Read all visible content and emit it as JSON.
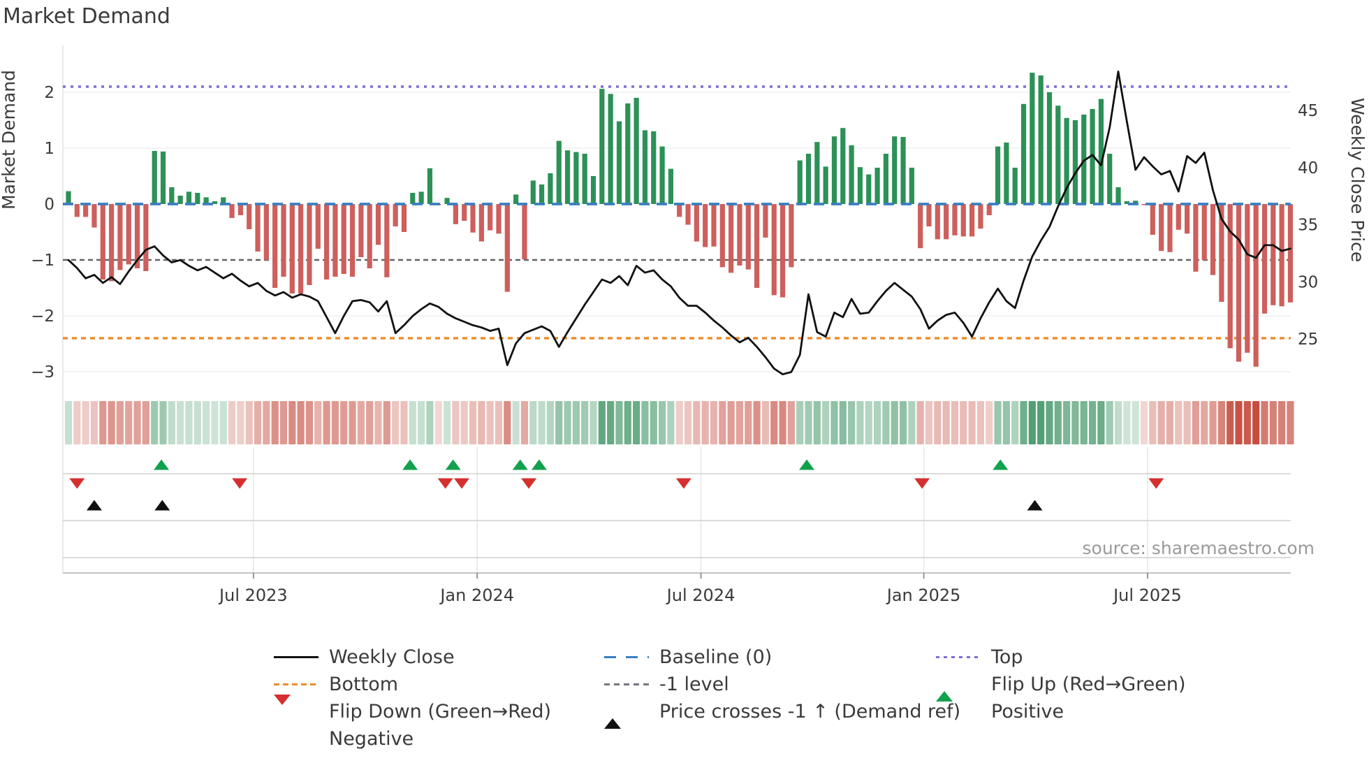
{
  "title": "Market Demand",
  "source_text": "source: sharemaestro.com",
  "axes": {
    "left_title": "Market Demand",
    "right_title": "Weekly Close Price",
    "demand_tick_labels": [
      "2",
      "1",
      "0",
      "−1",
      "−2",
      "−3"
    ],
    "demand_tick_values": [
      2,
      1,
      0,
      -1,
      -2,
      -3
    ],
    "price_tick_labels": [
      "45",
      "40",
      "35",
      "30",
      "25"
    ],
    "price_tick_values": [
      45,
      40,
      35,
      30,
      25
    ]
  },
  "chart_data": {
    "type": "bar",
    "subtype": "combo-bar-line-heatmap",
    "title": "Market Demand",
    "xlabel": "",
    "ylabel": "Market Demand",
    "y2label": "Weekly Close Price",
    "demand_ylim": [
      -3.35,
      2.85
    ],
    "price_ylim": [
      20.4,
      50.7
    ],
    "grid": "horizontal-light",
    "x_ticks": [
      {
        "label": "Jul 2023",
        "week": 21.5
      },
      {
        "label": "Jan 2024",
        "week": 47.5
      },
      {
        "label": "Jul 2024",
        "week": 73.5
      },
      {
        "label": "Jan 2025",
        "week": 99.4
      },
      {
        "label": "Jul 2025",
        "week": 125.4
      }
    ],
    "ref_lines": [
      {
        "name": "Top",
        "value": 2.1,
        "color": "#7b6fd4",
        "style": "dotted"
      },
      {
        "name": "Baseline (0)",
        "value": 0,
        "color": "#3a7ebf",
        "style": "dashed"
      },
      {
        "name": "-1 level",
        "value": -1,
        "color": "#5f6368",
        "style": "dashed"
      },
      {
        "name": "Bottom",
        "value": -2.4,
        "color": "#ee8d2a",
        "style": "dashed"
      }
    ],
    "series": [
      {
        "name": "Market Demand (weekly bars)",
        "type": "bar",
        "axis": "left",
        "color_positive": "#2c9156",
        "color_negative": "#cd5f5c",
        "values": [
          0.23,
          -0.23,
          -0.23,
          -0.42,
          -1.35,
          -1.38,
          -1.18,
          -1.08,
          -1.15,
          -1.2,
          0.95,
          0.94,
          0.3,
          0.15,
          0.22,
          0.2,
          0.12,
          0.05,
          0.12,
          -0.25,
          -0.2,
          -0.45,
          -0.85,
          -1.0,
          -1.5,
          -1.3,
          -1.6,
          -1.6,
          -1.45,
          -0.8,
          -1.35,
          -1.3,
          -1.25,
          -1.3,
          -0.95,
          -1.15,
          -0.73,
          -1.31,
          -0.4,
          -0.5,
          0.2,
          0.22,
          0.64,
          -0.02,
          0.11,
          -0.36,
          -0.3,
          -0.51,
          -0.67,
          -0.47,
          -0.53,
          -1.57,
          0.17,
          -0.99,
          0.42,
          0.35,
          0.55,
          1.13,
          0.96,
          0.93,
          0.9,
          0.5,
          2.06,
          1.97,
          1.48,
          1.8,
          1.9,
          1.32,
          1.3,
          1.03,
          0.63,
          -0.23,
          -0.37,
          -0.67,
          -0.77,
          -0.76,
          -1.13,
          -1.23,
          -1.1,
          -1.17,
          -1.5,
          -0.6,
          -1.63,
          -1.67,
          -1.13,
          0.78,
          0.9,
          1.11,
          0.67,
          1.21,
          1.36,
          1.05,
          0.66,
          0.53,
          0.65,
          0.9,
          1.21,
          1.2,
          0.65,
          -0.79,
          -0.4,
          -0.63,
          -0.63,
          -0.56,
          -0.58,
          -0.58,
          -0.44,
          -0.2,
          1.03,
          1.1,
          0.65,
          1.79,
          2.35,
          2.3,
          2.0,
          1.76,
          1.54,
          1.5,
          1.6,
          1.7,
          1.88,
          0.9,
          0.3,
          0.05,
          0.06,
          -0.02,
          -0.55,
          -0.84,
          -0.86,
          -0.46,
          -0.53,
          -1.21,
          -1.0,
          -1.27,
          -1.75,
          -2.58,
          -2.82,
          -2.66,
          -2.91,
          -1.96,
          -1.81,
          -1.83,
          -1.76
        ]
      },
      {
        "name": "Weekly Close",
        "type": "line",
        "axis": "right",
        "color": "#111111",
        "values": [
          31.9,
          31.2,
          30.3,
          30.6,
          29.9,
          30.4,
          29.8,
          30.9,
          31.9,
          32.8,
          33.1,
          32.3,
          31.7,
          31.9,
          31.4,
          31.0,
          31.3,
          30.8,
          30.3,
          30.7,
          30.1,
          29.6,
          29.9,
          29.2,
          28.8,
          29.1,
          28.6,
          28.9,
          28.7,
          28.3,
          26.9,
          25.5,
          27.0,
          28.3,
          28.4,
          28.2,
          27.4,
          28.3,
          25.5,
          26.2,
          27.0,
          27.6,
          28.1,
          27.8,
          27.2,
          26.8,
          26.5,
          26.2,
          26.0,
          25.7,
          25.9,
          22.7,
          24.6,
          25.5,
          25.8,
          26.1,
          25.7,
          24.3,
          25.6,
          26.8,
          28.0,
          29.1,
          30.2,
          29.9,
          30.5,
          29.7,
          31.4,
          30.8,
          31.0,
          30.2,
          29.6,
          28.6,
          27.9,
          27.9,
          27.3,
          26.6,
          26.0,
          25.3,
          24.7,
          25.1,
          24.3,
          23.4,
          22.4,
          21.9,
          22.1,
          23.6,
          28.9,
          25.6,
          25.2,
          27.3,
          26.9,
          28.5,
          27.2,
          27.3,
          28.3,
          29.2,
          29.9,
          29.3,
          28.7,
          27.6,
          25.9,
          26.6,
          27.1,
          27.3,
          26.4,
          25.2,
          26.8,
          28.2,
          29.4,
          28.3,
          27.7,
          30.1,
          32.2,
          33.6,
          34.8,
          36.6,
          38.2,
          39.5,
          40.6,
          41.1,
          40.2,
          43.5,
          48.4,
          44.0,
          39.8,
          40.9,
          40.1,
          39.4,
          39.7,
          37.9,
          41.0,
          40.4,
          41.3,
          38.0,
          35.5,
          34.4,
          33.7,
          32.4,
          32.1,
          33.2,
          33.2,
          32.7,
          32.9
        ]
      }
    ],
    "heatmap": {
      "description": "weekly color strip below chart; cell color intensity proportional to demand bar value (green positive, red negative)",
      "derived_from": "series[0].values",
      "positive_color": "#2e8b57",
      "negative_color": "#c04a3c"
    },
    "markers": {
      "flip_up": {
        "label": "Flip Up (Red→Green)",
        "color": "#12a14e",
        "shape": "triangle-up",
        "weeks": [
          10.8,
          39.7,
          44.7,
          52.5,
          54.7,
          85.8,
          108.3
        ]
      },
      "flip_down": {
        "label": "Flip Down (Green→Red)",
        "color": "#d62f2f",
        "shape": "triangle-down",
        "weeks": [
          1.0,
          19.9,
          43.8,
          45.7,
          53.5,
          71.5,
          99.2,
          126.4
        ]
      },
      "price_cross": {
        "label": "Price crosses -1 ↑ (Demand ref)",
        "color": "#111111",
        "shape": "triangle-up",
        "weeks": [
          3.0,
          10.9,
          112.3
        ]
      }
    }
  },
  "legend": {
    "columns": [
      [
        {
          "swatch": "line-black",
          "label": "Weekly Close"
        },
        {
          "swatch": "dash-orange",
          "label": "Bottom"
        },
        {
          "swatch": "tri-down-red",
          "label": "Flip Down (Green→Red)"
        },
        {
          "swatch": "circle-darkred",
          "label": "Negative"
        }
      ],
      [
        {
          "swatch": "dash-blue",
          "label": "Baseline (0)"
        },
        {
          "swatch": "dash-gray",
          "label": "-1 level"
        },
        {
          "swatch": "tri-up-black",
          "label": "Price crosses -1 ↑ (Demand ref)"
        }
      ],
      [
        {
          "swatch": "dot-purple",
          "label": "Top"
        },
        {
          "swatch": "tri-up-green",
          "label": "Flip Up (Red→Green)"
        },
        {
          "swatch": "circle-green",
          "label": "Positive"
        }
      ]
    ]
  }
}
